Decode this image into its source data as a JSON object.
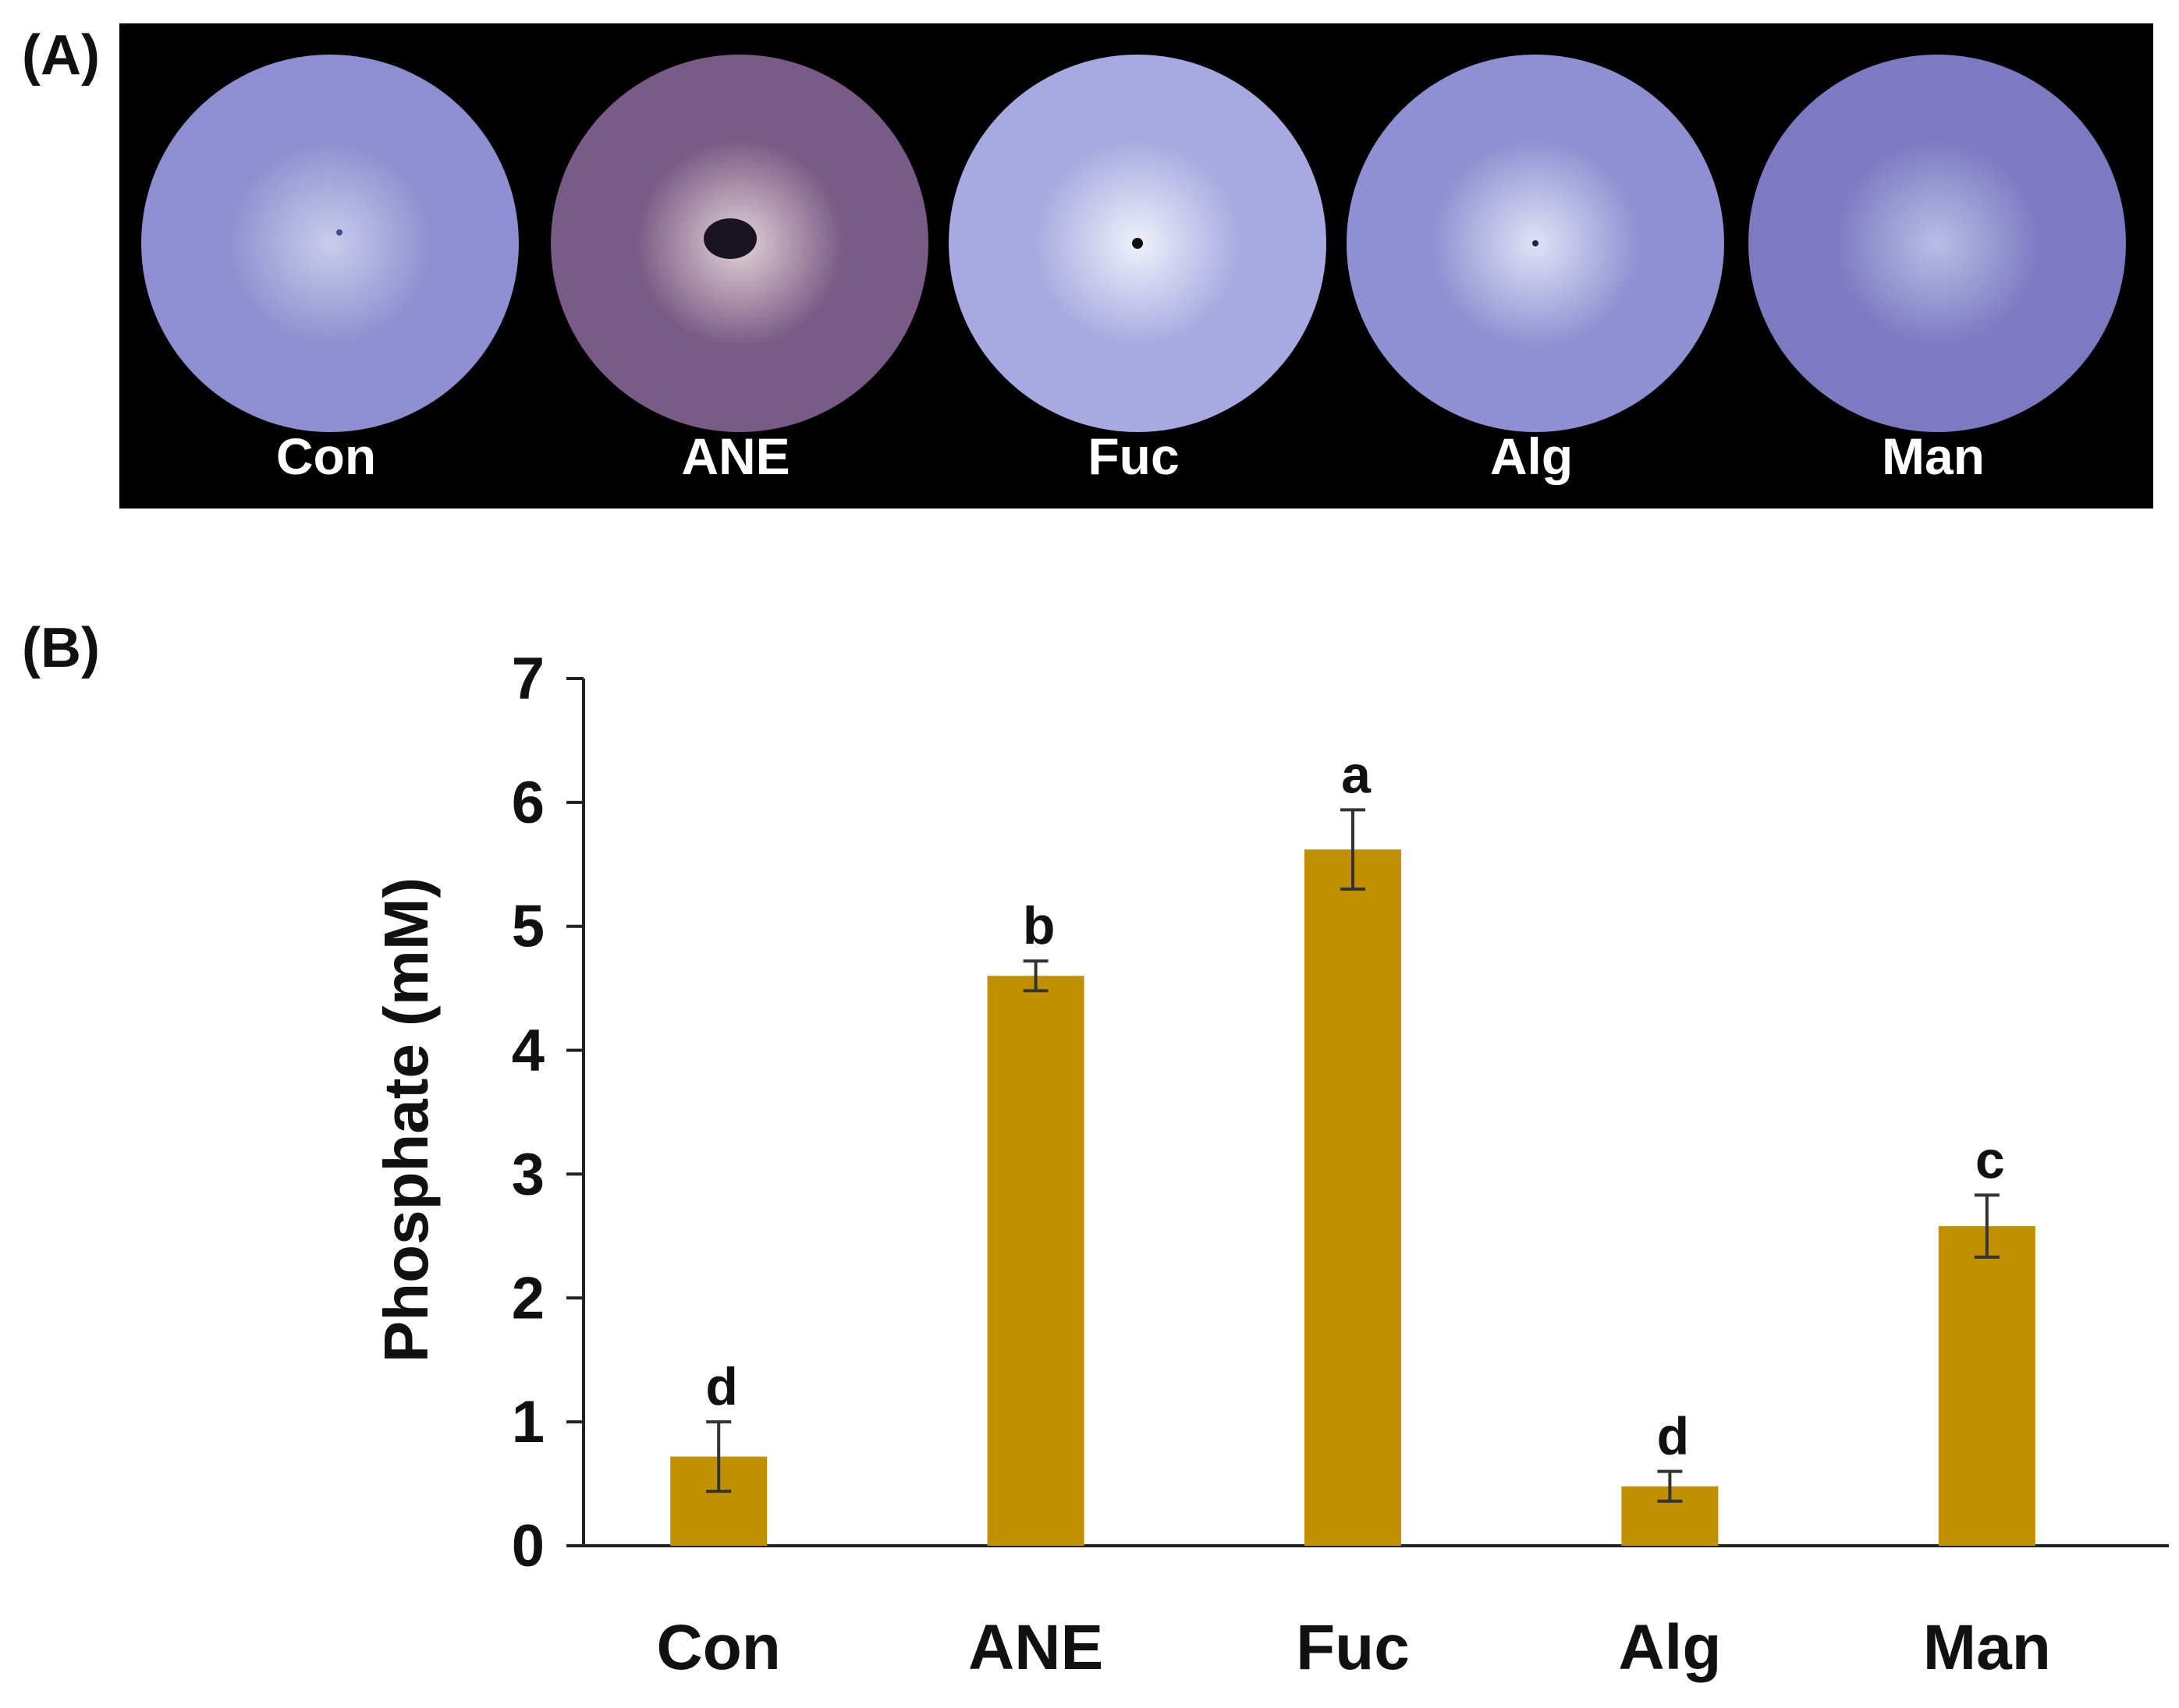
{
  "panel_a": {
    "label": "(A)",
    "plates": [
      {
        "name": "Con",
        "color": "#8e8ed0",
        "center_color": "#c9cdeb",
        "spot": "tiny"
      },
      {
        "name": "ANE",
        "color": "#7a5a86",
        "center_color": "#e4d2d6",
        "spot": "large-dark"
      },
      {
        "name": "Fuc",
        "color": "#a7a9e0",
        "center_color": "#eef1fb",
        "spot": "dot"
      },
      {
        "name": "Alg",
        "color": "#8f90d2",
        "center_color": "#dfe3f6",
        "spot": "small-dot"
      },
      {
        "name": "Man",
        "color": "#7d7ac2",
        "center_color": "#b9bde6",
        "spot": "none"
      }
    ]
  },
  "panel_b": {
    "label": "(B)"
  },
  "chart_data": {
    "type": "bar",
    "categories": [
      "Con",
      "ANE",
      "Fuc",
      "Alg",
      "Man"
    ],
    "values": [
      0.72,
      4.6,
      5.62,
      0.48,
      2.58
    ],
    "errors": [
      0.28,
      0.12,
      0.32,
      0.12,
      0.25
    ],
    "significance_letters": [
      "d",
      "b",
      "a",
      "d",
      "c"
    ],
    "ylabel": "Phosphate (mM)",
    "xlabel": "",
    "ylim": [
      0,
      7
    ],
    "yticks": [
      "0",
      "1",
      "2",
      "3",
      "4",
      "5",
      "6",
      "7"
    ],
    "bar_color": "#c09000",
    "grid": false,
    "legend": "none"
  }
}
